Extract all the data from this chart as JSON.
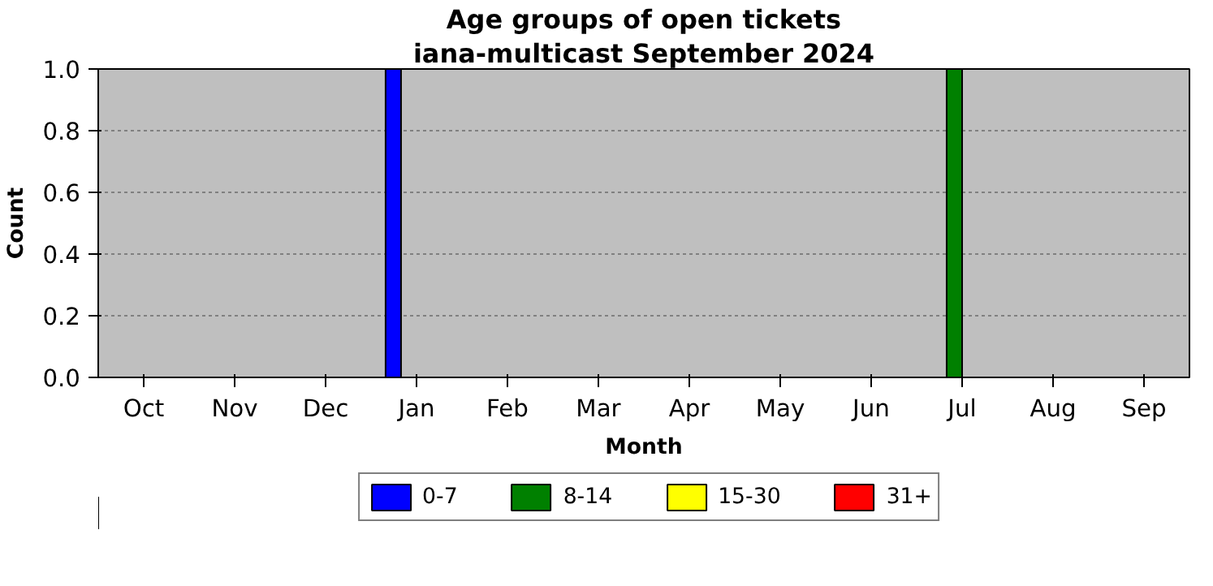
{
  "chart_data": {
    "type": "bar",
    "title": "Age groups of open tickets",
    "subtitle": "iana-multicast September 2024",
    "xlabel": "Month",
    "ylabel": "Count",
    "categories": [
      "Oct",
      "Nov",
      "Dec",
      "Jan",
      "Feb",
      "Mar",
      "Apr",
      "May",
      "Jun",
      "Jul",
      "Aug",
      "Sep"
    ],
    "series": [
      {
        "name": "0-7",
        "color": "#0000ff",
        "values": [
          0,
          0,
          0,
          1,
          0,
          0,
          0,
          0,
          0,
          0,
          0,
          0
        ]
      },
      {
        "name": "8-14",
        "color": "#008000",
        "values": [
          0,
          0,
          0,
          0,
          0,
          0,
          0,
          0,
          0,
          1,
          0,
          0
        ]
      },
      {
        "name": "15-30",
        "color": "#ffff00",
        "values": [
          0,
          0,
          0,
          0,
          0,
          0,
          0,
          0,
          0,
          0,
          0,
          0
        ]
      },
      {
        "name": "31+",
        "color": "#ff0000",
        "values": [
          0,
          0,
          0,
          0,
          0,
          0,
          0,
          0,
          0,
          0,
          0,
          0
        ]
      }
    ],
    "ylim": [
      0,
      1
    ],
    "yticks": [
      {
        "value": 0,
        "label": "0.0"
      },
      {
        "value": 0.2,
        "label": "0.2"
      },
      {
        "value": 0.4,
        "label": "0.4"
      },
      {
        "value": 0.6,
        "label": "0.6"
      },
      {
        "value": 0.8,
        "label": "0.8"
      },
      {
        "value": 1,
        "label": "1.0"
      }
    ],
    "grid": "y",
    "legend": "bottom"
  }
}
